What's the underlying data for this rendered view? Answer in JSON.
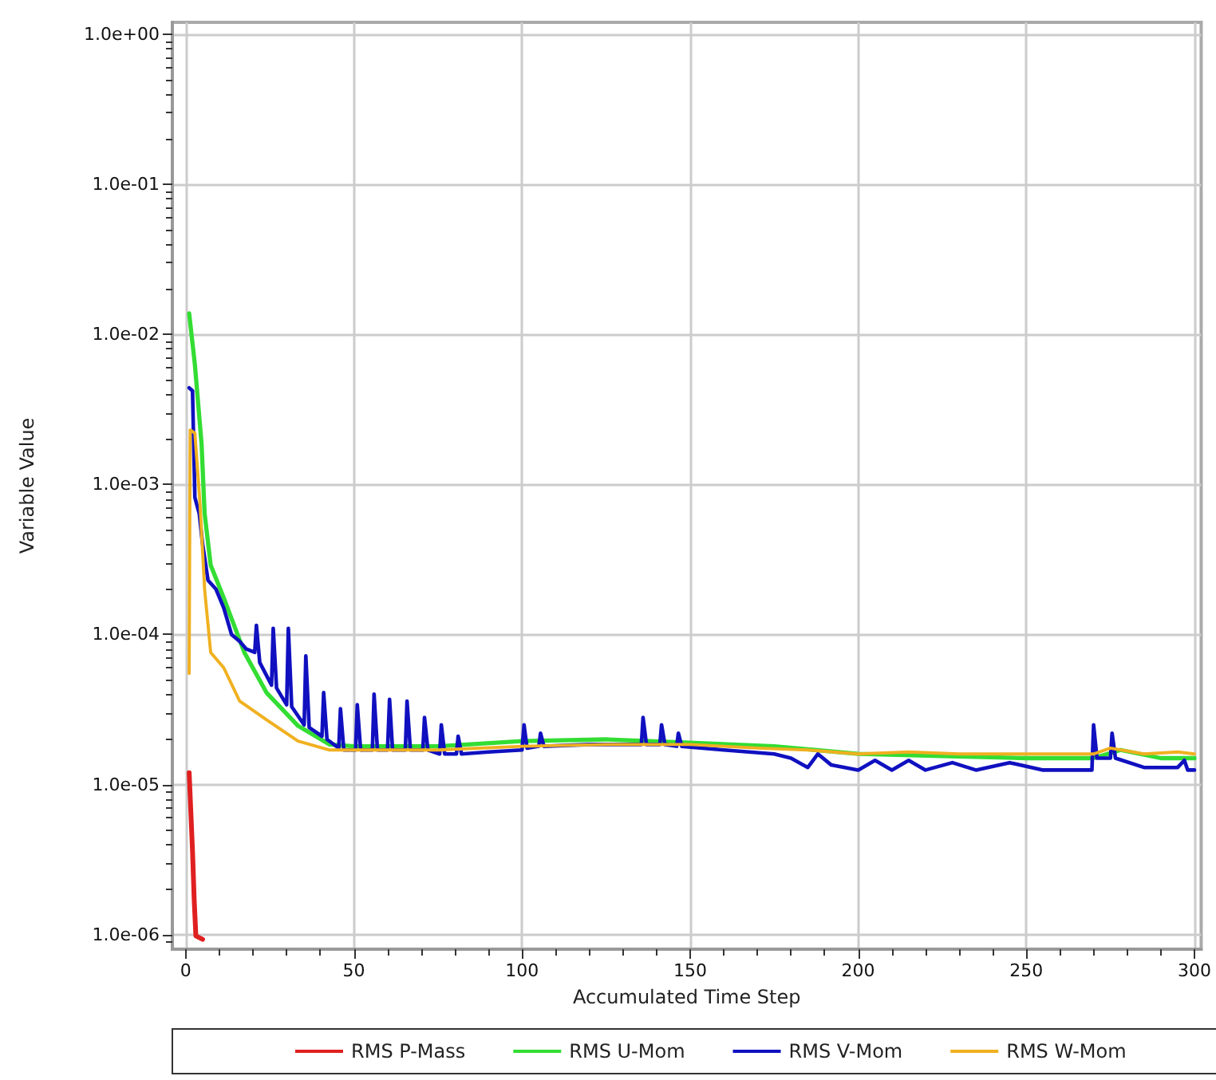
{
  "chart_data": {
    "type": "line",
    "xlabel": "Accumulated Time Step",
    "ylabel": "Variable Value",
    "xlim": [
      -4,
      302
    ],
    "xticks": [
      0,
      50,
      100,
      150,
      200,
      250,
      300
    ],
    "ylim": [
      8e-07,
      1.2
    ],
    "log": "y",
    "yticks": [
      {
        "value": 1e-06,
        "label": "1.0e-06"
      },
      {
        "value": 1e-05,
        "label": "1.0e-05"
      },
      {
        "value": 0.0001,
        "label": "1.0e-04"
      },
      {
        "value": 0.001,
        "label": "1.0e-03"
      },
      {
        "value": 0.01,
        "label": "1.0e-02"
      },
      {
        "value": 0.1,
        "label": "1.0e-01"
      },
      {
        "value": 1,
        "label": "1.0e+00"
      }
    ],
    "grid": true,
    "legend": "bottom",
    "marker": "none",
    "line_style": "solid",
    "series": [
      {
        "name": "RMS P-Mass",
        "color": "#e02020",
        "x": [
          1,
          2,
          2.5,
          3,
          5
        ],
        "values": [
          1.2e-05,
          3.6e-06,
          1.7e-06,
          9.8e-07,
          9.3e-07
        ]
      },
      {
        "name": "RMS U-Mom",
        "color": "#33dd33",
        "x": [
          1,
          2.7,
          4.7,
          5.6,
          7.4,
          11.3,
          17.4,
          24,
          33.4,
          42.8,
          50,
          75,
          100,
          125,
          150,
          175,
          200,
          225,
          250,
          270,
          278,
          290,
          300
        ],
        "values": [
          0.0138,
          0.0063,
          0.00185,
          0.00064,
          0.00029,
          0.000175,
          7.6e-05,
          4.1e-05,
          2.46e-05,
          1.85e-05,
          1.8e-05,
          1.8e-05,
          1.95e-05,
          2e-05,
          1.9e-05,
          1.8e-05,
          1.6e-05,
          1.55e-05,
          1.5e-05,
          1.5e-05,
          1.7e-05,
          1.5e-05,
          1.5e-05
        ]
      },
      {
        "name": "RMS V-Mom",
        "color": "#1010c0",
        "x": [
          1,
          2,
          2.7,
          4,
          5,
          6.6,
          9,
          11.3,
          13.6,
          16,
          18,
          20.5,
          21,
          22,
          25.5,
          26,
          27,
          30,
          30.5,
          31.5,
          35.2,
          35.7,
          36.7,
          40.5,
          41,
          42,
          45.5,
          46,
          47,
          50.5,
          51,
          52,
          55.5,
          56,
          57,
          60,
          60.6,
          61.5,
          65.3,
          65.8,
          66.8,
          70.5,
          71,
          72,
          75.5,
          76,
          77,
          80.5,
          81,
          82,
          90,
          100,
          100.6,
          101.5,
          105,
          105.5,
          106.5,
          120,
          135.5,
          136,
          137,
          141,
          141.5,
          142.5,
          146,
          146.5,
          147.5,
          160,
          175,
          180,
          185,
          188,
          192,
          200,
          205,
          210,
          215,
          220,
          228,
          235,
          245,
          255,
          265,
          269.5,
          270,
          271,
          275,
          275.5,
          276.5,
          285,
          295,
          297,
          298,
          300
        ],
        "values": [
          0.0044,
          0.0042,
          0.00082,
          0.00064,
          0.0004,
          0.00023,
          0.0002,
          0.00015,
          0.0001,
          9e-05,
          8e-05,
          7.6e-05,
          0.000115,
          6.5e-05,
          4.6e-05,
          0.00011,
          4.4e-05,
          3.4e-05,
          0.00011,
          3.3e-05,
          2.5e-05,
          7.2e-05,
          2.4e-05,
          2.1e-05,
          4.1e-05,
          2e-05,
          1.75e-05,
          3.2e-05,
          1.7e-05,
          1.7e-05,
          3.4e-05,
          1.7e-05,
          1.7e-05,
          4e-05,
          1.7e-05,
          1.7e-05,
          3.7e-05,
          1.7e-05,
          1.7e-05,
          3.6e-05,
          1.7e-05,
          1.7e-05,
          2.8e-05,
          1.7e-05,
          1.6e-05,
          2.5e-05,
          1.6e-05,
          1.6e-05,
          2.1e-05,
          1.6e-05,
          1.65e-05,
          1.7e-05,
          2.5e-05,
          1.75e-05,
          1.8e-05,
          2.2e-05,
          1.8e-05,
          1.85e-05,
          1.85e-05,
          2.8e-05,
          1.85e-05,
          1.85e-05,
          2.5e-05,
          1.85e-05,
          1.8e-05,
          2.2e-05,
          1.8e-05,
          1.7e-05,
          1.6e-05,
          1.5e-05,
          1.3e-05,
          1.6e-05,
          1.35e-05,
          1.25e-05,
          1.45e-05,
          1.25e-05,
          1.45e-05,
          1.25e-05,
          1.4e-05,
          1.25e-05,
          1.4e-05,
          1.25e-05,
          1.25e-05,
          1.25e-05,
          2.5e-05,
          1.5e-05,
          1.5e-05,
          2.2e-05,
          1.5e-05,
          1.3e-05,
          1.3e-05,
          1.45e-05,
          1.25e-05,
          1.25e-05
        ]
      },
      {
        "name": "RMS W-Mom",
        "color": "#f0b020",
        "x": [
          1,
          1.3,
          2.7,
          4.2,
          5.6,
          7.4,
          11.3,
          16,
          24,
          33.4,
          42.8,
          50,
          75,
          100,
          125,
          150,
          170,
          185,
          200,
          215,
          230,
          250,
          270,
          275,
          285,
          295,
          300
        ],
        "values": [
          5.5e-05,
          0.0023,
          0.0022,
          0.00076,
          0.0002,
          7.6e-05,
          6e-05,
          3.6e-05,
          2.7e-05,
          1.95e-05,
          1.7e-05,
          1.7e-05,
          1.7e-05,
          1.8e-05,
          1.85e-05,
          1.85e-05,
          1.75e-05,
          1.7e-05,
          1.6e-05,
          1.65e-05,
          1.6e-05,
          1.6e-05,
          1.6e-05,
          1.75e-05,
          1.6e-05,
          1.65e-05,
          1.6e-05
        ]
      }
    ]
  }
}
